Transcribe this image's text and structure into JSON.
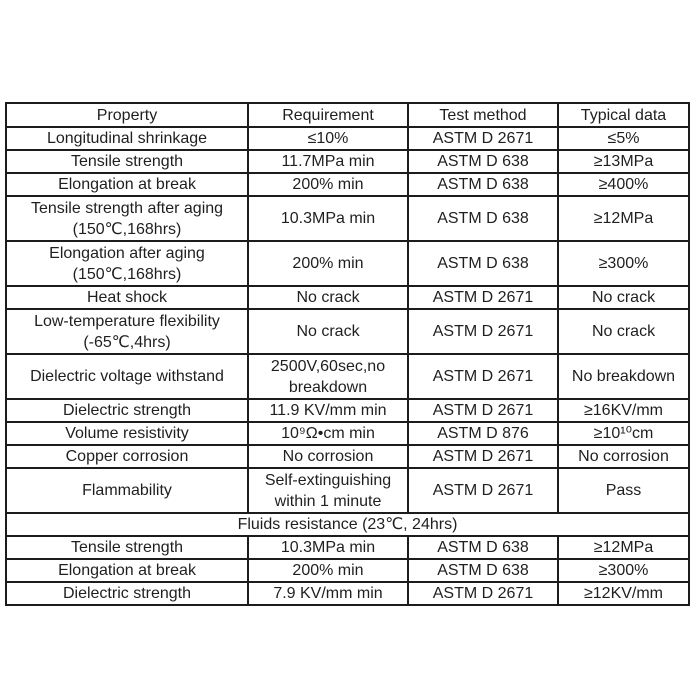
{
  "colors": {
    "background": "#ffffff",
    "border": "#1c1c1c",
    "text": "#1f1f1f"
  },
  "table": {
    "headers": [
      "Property",
      "Requirement",
      "Test method",
      "Typical data"
    ],
    "rows": [
      {
        "cells": [
          "Longitudinal shrinkage",
          "≤10%",
          "ASTM D 2671",
          "≤5%"
        ]
      },
      {
        "cells": [
          "Tensile strength",
          "11.7MPa min",
          "ASTM D 638",
          "≥13MPa"
        ]
      },
      {
        "cells": [
          "Elongation at break",
          "200% min",
          "ASTM D 638",
          "≥400%"
        ]
      },
      {
        "cells": [
          "Tensile strength after aging\n(150℃,168hrs)",
          "10.3MPa min",
          "ASTM D 638",
          "≥12MPa"
        ]
      },
      {
        "cells": [
          "Elongation after aging\n(150℃,168hrs)",
          "200% min",
          "ASTM D 638",
          "≥300%"
        ]
      },
      {
        "cells": [
          "Heat shock",
          "No crack",
          "ASTM D 2671",
          "No crack"
        ]
      },
      {
        "cells": [
          "Low-temperature flexibility\n(-65℃,4hrs)",
          "No crack",
          "ASTM D 2671",
          "No crack"
        ]
      },
      {
        "cells": [
          "Dielectric voltage withstand",
          "2500V,60sec,no breakdown",
          "ASTM D 2671",
          "No breakdown"
        ]
      },
      {
        "cells": [
          "Dielectric strength",
          "11.9 KV/mm min",
          "ASTM D 2671",
          "≥16KV/mm"
        ]
      },
      {
        "cells": [
          "Volume resistivity",
          "10⁹Ω•cm min",
          "ASTM D 876",
          "≥10¹⁰cm"
        ]
      },
      {
        "cells": [
          "Copper corrosion",
          "No corrosion",
          "ASTM D 2671",
          "No corrosion"
        ]
      },
      {
        "cells": [
          "Flammability",
          "Self-extinguishing within 1 minute",
          "ASTM D 2671",
          "Pass"
        ]
      },
      {
        "section": "Fluids resistance (23℃, 24hrs)"
      },
      {
        "cells": [
          "Tensile strength",
          "10.3MPa min",
          "ASTM D 638",
          "≥12MPa"
        ]
      },
      {
        "cells": [
          "Elongation at break",
          "200% min",
          "ASTM D 638",
          "≥300%"
        ]
      },
      {
        "cells": [
          "Dielectric strength",
          "7.9 KV/mm min",
          "ASTM D 2671",
          "≥12KV/mm"
        ]
      }
    ]
  }
}
